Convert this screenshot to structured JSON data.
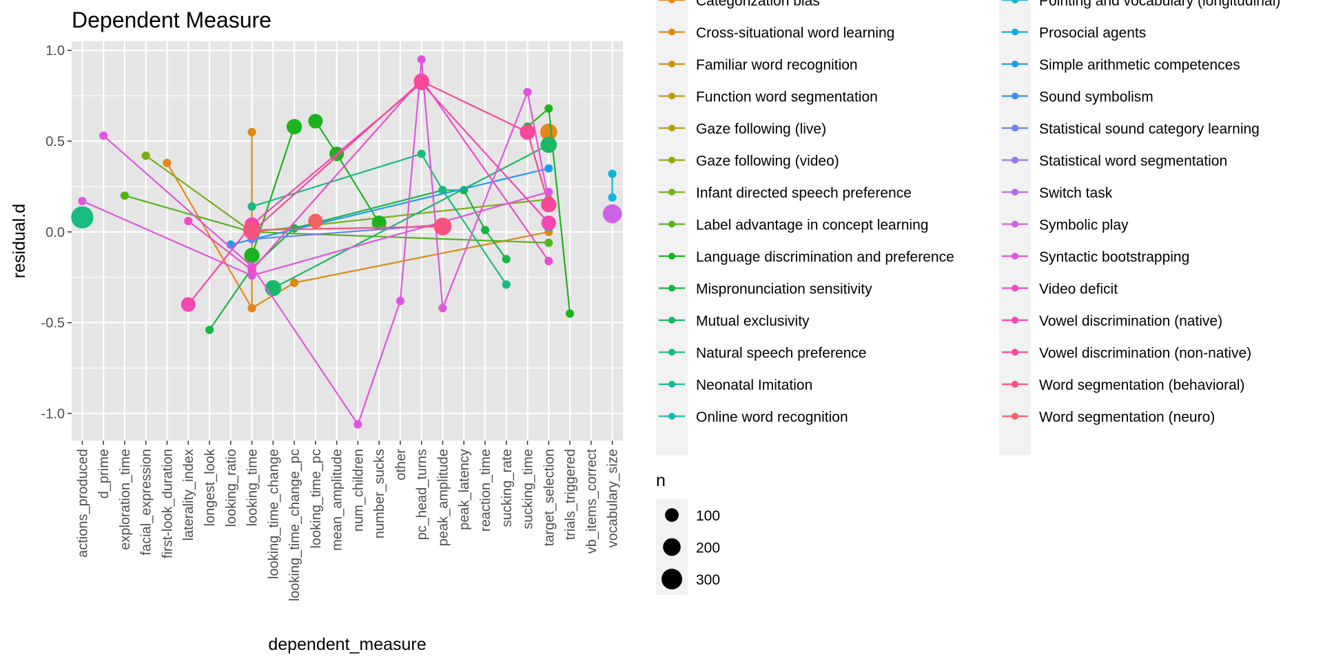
{
  "chart_data": {
    "type": "scatter",
    "title": "Dependent Measure",
    "xlabel": "dependent_measure",
    "ylabel": "residual.d",
    "ylim": [
      -1.15,
      1.05
    ],
    "y_ticks": [
      1.0,
      0.5,
      0.0,
      -0.5,
      -1.0
    ],
    "y_tick_labels": [
      "1.0",
      "0.5",
      "0.0",
      "-0.5",
      "-1.0"
    ],
    "grid": true,
    "panel_background": "#e5e5e5",
    "grid_color": "#ffffff",
    "categories": [
      "actions_produced",
      "d_prime",
      "exploration_time",
      "facial_expression",
      "first-look_duration",
      "laterality_index",
      "longest_look",
      "looking_ratio",
      "looking_time",
      "looking_time_change",
      "looking_time_change_pc",
      "looking_time_pc",
      "mean_amplitude",
      "num_children",
      "number_sucks",
      "other",
      "pc_head_turns",
      "peak_amplitude",
      "peak_latency",
      "reaction_time",
      "sucking_rate",
      "sucking_time",
      "target_selection",
      "trials_triggered",
      "vb_items_correct",
      "vocabulary_size"
    ],
    "color_legend": {
      "column1": [
        {
          "label": "Categorization bias",
          "color": "#e7861b"
        },
        {
          "label": "Cross-situational word learning",
          "color": "#dc8a10"
        },
        {
          "label": "Familiar word recognition",
          "color": "#cf8f14"
        },
        {
          "label": "Function word segmentation",
          "color": "#bf9a10"
        },
        {
          "label": "Gaze following (live)",
          "color": "#aba10d"
        },
        {
          "label": "Gaze following (video)",
          "color": "#96a70e"
        },
        {
          "label": "Infant directed speech preference",
          "color": "#7aae1a"
        },
        {
          "label": "Label advantage in concept learning",
          "color": "#54b31a"
        },
        {
          "label": "Language discrimination and preference",
          "color": "#1db31f"
        },
        {
          "label": "Mispronunciation sensitivity",
          "color": "#16b645"
        },
        {
          "label": "Mutual exclusivity",
          "color": "#18b866"
        },
        {
          "label": "Natural speech preference",
          "color": "#18bb80"
        },
        {
          "label": "Neonatal Imitation",
          "color": "#12bc98"
        },
        {
          "label": "Online word recognition",
          "color": "#16bdad"
        }
      ],
      "column2": [
        {
          "label": "Pointing and vocabulary (longitudinal)",
          "color": "#13b4d4"
        },
        {
          "label": "Prosocial agents",
          "color": "#12a8e3"
        },
        {
          "label": "Simple arithmetic competences",
          "color": "#1f9cf0"
        },
        {
          "label": "Sound symbolism",
          "color": "#3a8ef7"
        },
        {
          "label": "Statistical sound category learning",
          "color": "#6a80f8"
        },
        {
          "label": "Statistical word segmentation",
          "color": "#9575f3"
        },
        {
          "label": "Switch task",
          "color": "#b46bef"
        },
        {
          "label": "Symbolic play",
          "color": "#cc62e8"
        },
        {
          "label": "Syntactic bootstrapping",
          "color": "#df56de"
        },
        {
          "label": "Video deficit",
          "color": "#ec4ccb"
        },
        {
          "label": "Vowel discrimination (native)",
          "color": "#f346b3"
        },
        {
          "label": "Vowel discrimination (non-native)",
          "color": "#f74899"
        },
        {
          "label": "Word segmentation (behavioral)",
          "color": "#f7537e"
        },
        {
          "label": "Word segmentation (neuro)",
          "color": "#f56061"
        }
      ]
    },
    "size_legend": {
      "title": "n",
      "entries": [
        {
          "label": "100",
          "value": 100
        },
        {
          "label": "200",
          "value": 200
        },
        {
          "label": "300",
          "value": 300
        }
      ]
    },
    "series": [
      {
        "color": "#dc8a10",
        "points": [
          [
            8,
            0.55
          ],
          [
            8,
            -0.42
          ],
          [
            10,
            -0.28
          ],
          [
            22,
            0.0
          ]
        ]
      },
      {
        "color": "#e7861b",
        "points": [
          [
            4,
            0.38
          ],
          [
            8,
            -0.42
          ]
        ]
      },
      {
        "color": "#e7861b",
        "points": [
          [
            22,
            0.55
          ]
        ],
        "n": 180
      },
      {
        "color": "#7aae1a",
        "points": [
          [
            3,
            0.42
          ],
          [
            8,
            0.0
          ],
          [
            22,
            0.18
          ]
        ]
      },
      {
        "color": "#54b31a",
        "points": [
          [
            2,
            0.2
          ],
          [
            8,
            0.0
          ],
          [
            22,
            -0.06
          ]
        ]
      },
      {
        "color": "#1db31f",
        "points": [
          [
            11,
            0.61
          ],
          [
            12,
            0.43
          ],
          [
            14,
            0.05
          ]
        ],
        "n": 120
      },
      {
        "color": "#1db31f",
        "points": [
          [
            8,
            -0.13
          ],
          [
            10,
            0.58
          ]
        ],
        "n": 140
      },
      {
        "color": "#1db31f",
        "points": [
          [
            21,
            0.58
          ],
          [
            22,
            0.68
          ],
          [
            23,
            -0.45
          ]
        ]
      },
      {
        "color": "#16b645",
        "points": [
          [
            6,
            -0.54
          ],
          [
            8,
            -0.2
          ],
          [
            10,
            0.02
          ],
          [
            17,
            0.23
          ],
          [
            18,
            0.23
          ],
          [
            19,
            0.01
          ],
          [
            20,
            -0.15
          ]
        ]
      },
      {
        "color": "#18bb80",
        "points": [
          [
            8,
            0.14
          ],
          [
            16,
            0.43
          ],
          [
            17,
            0.23
          ],
          [
            20,
            -0.29
          ]
        ]
      },
      {
        "color": "#18b866",
        "points": [
          [
            9,
            -0.31
          ],
          [
            22,
            0.48
          ]
        ],
        "n": 160
      },
      {
        "color": "#18bb80",
        "points": [
          [
            0,
            0.08
          ]
        ],
        "n": 360
      },
      {
        "color": "#13b4d4",
        "points": [
          [
            25,
            0.32
          ],
          [
            25,
            0.19
          ]
        ]
      },
      {
        "color": "#1f9cf0",
        "points": [
          [
            7,
            -0.07
          ],
          [
            22,
            0.35
          ]
        ]
      },
      {
        "color": "#1f9cf0",
        "points": [
          [
            22,
            0.04
          ]
        ],
        "n": 80
      },
      {
        "color": "#6a80f8",
        "points": [
          [
            8,
            -0.04
          ],
          [
            17,
            0.04
          ]
        ]
      },
      {
        "color": "#cc62e8",
        "points": [
          [
            25,
            0.1
          ]
        ],
        "n": 240
      },
      {
        "color": "#df56de",
        "points": [
          [
            1,
            0.53
          ],
          [
            8,
            -0.19
          ],
          [
            13,
            -1.06
          ],
          [
            15,
            -0.38
          ],
          [
            16,
            0.95
          ],
          [
            17,
            -0.42
          ],
          [
            21,
            0.77
          ],
          [
            22,
            0.17
          ]
        ]
      },
      {
        "color": "#df56de",
        "points": [
          [
            0,
            0.17
          ],
          [
            8,
            -0.24
          ],
          [
            22,
            0.22
          ]
        ]
      },
      {
        "color": "#ec4ccb",
        "points": [
          [
            5,
            0.06
          ],
          [
            8,
            -0.21
          ],
          [
            16,
            0.84
          ],
          [
            22,
            -0.16
          ]
        ]
      },
      {
        "color": "#f346b3",
        "points": [
          [
            5,
            -0.4
          ],
          [
            8,
            0.04
          ],
          [
            16,
            0.82
          ],
          [
            22,
            0.05
          ]
        ],
        "n": 120
      },
      {
        "color": "#f74899",
        "points": [
          [
            8,
            0.0
          ],
          [
            16,
            0.83
          ],
          [
            21,
            0.55
          ],
          [
            22,
            0.15
          ]
        ],
        "n": 140
      },
      {
        "color": "#f7537e",
        "points": [
          [
            8,
            0.01
          ],
          [
            17,
            0.03
          ]
        ],
        "n": 200
      },
      {
        "color": "#f56061",
        "points": [
          [
            11,
            0.06
          ]
        ],
        "n": 120
      }
    ]
  }
}
